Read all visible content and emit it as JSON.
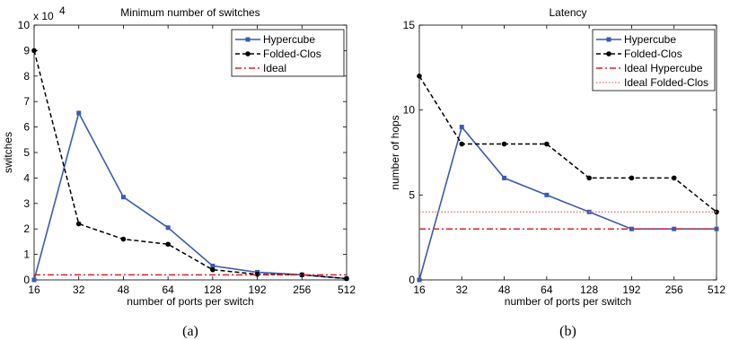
{
  "chart_data": [
    {
      "type": "line",
      "title": "Minimum number of switches",
      "xlabel": "number of ports per switch",
      "ylabel": "switches",
      "exponent_label": "x 10",
      "exponent_power": "4",
      "caption": "(a)",
      "categories": [
        "16",
        "32",
        "48",
        "64",
        "128",
        "192",
        "256",
        "512"
      ],
      "yticks": [
        "0",
        "1",
        "2",
        "3",
        "4",
        "5",
        "6",
        "7",
        "8",
        "9",
        "10"
      ],
      "ylim": [
        0,
        10
      ],
      "legend_position": "top-right",
      "series": [
        {
          "name": "Hypercube",
          "color": "#3c5bb0",
          "style": "solid",
          "marker": "square",
          "values": [
            0,
            6.55,
            3.25,
            2.05,
            0.55,
            0.3,
            0.2,
            0.05
          ]
        },
        {
          "name": "Folded-Clos",
          "color": "#000000",
          "style": "dashed",
          "marker": "circle",
          "values": [
            9.0,
            2.2,
            1.6,
            1.4,
            0.4,
            0.22,
            0.2,
            0.05
          ]
        },
        {
          "name": "Ideal",
          "color": "#e0202a",
          "style": "dashdot",
          "marker": "none",
          "values": [
            0.2,
            0.2,
            0.2,
            0.2,
            0.2,
            0.2,
            0.2,
            0.2
          ]
        }
      ]
    },
    {
      "type": "line",
      "title": "Latency",
      "xlabel": "number of ports per switch",
      "ylabel": "number of hops",
      "caption": "(b)",
      "categories": [
        "16",
        "32",
        "48",
        "64",
        "128",
        "192",
        "256",
        "512"
      ],
      "yticks": [
        "0",
        "5",
        "10",
        "15"
      ],
      "ylim": [
        0,
        15
      ],
      "legend_position": "top-right",
      "series": [
        {
          "name": "Hypercube",
          "color": "#3c5bb0",
          "style": "solid",
          "marker": "square",
          "values": [
            0,
            9,
            6,
            5,
            4,
            3,
            3,
            3
          ]
        },
        {
          "name": "Folded-Clos",
          "color": "#000000",
          "style": "dashed",
          "marker": "circle",
          "values": [
            12,
            8,
            8,
            8,
            6,
            6,
            6,
            4
          ]
        },
        {
          "name": "Ideal Hypercube",
          "color": "#e0202a",
          "style": "dashdot",
          "marker": "none",
          "values": [
            3,
            3,
            3,
            3,
            3,
            3,
            3,
            3
          ]
        },
        {
          "name": "Ideal Folded-Clos",
          "color": "#f07a80",
          "style": "dotted",
          "marker": "none",
          "values": [
            4,
            4,
            4,
            4,
            4,
            4,
            4,
            4
          ]
        }
      ]
    }
  ]
}
